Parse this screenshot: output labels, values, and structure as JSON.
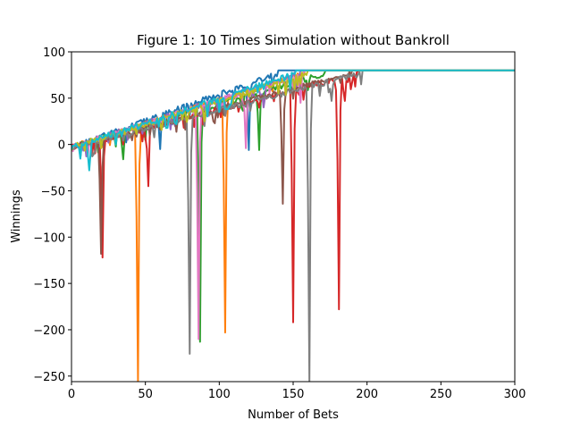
{
  "chart_data": {
    "type": "line",
    "title": "Figure 1: 10 Times Simulation without Bankroll",
    "xlabel": "Number of Bets",
    "ylabel": "Winnings",
    "xlim": [
      0,
      300
    ],
    "ylim": [
      -256,
      100
    ],
    "xticks": [
      0,
      50,
      100,
      150,
      200,
      250,
      300
    ],
    "yticks": [
      100,
      50,
      0,
      -50,
      -100,
      -150,
      -200,
      -250
    ],
    "xtick_labels": [
      "0",
      "50",
      "100",
      "150",
      "200",
      "250",
      "300"
    ],
    "ytick_labels": [
      "100",
      "50",
      "0",
      "−50",
      "−100",
      "−150",
      "−200",
      "−250"
    ],
    "grid": false,
    "legend": "none",
    "series": [
      {
        "color": "#1f77b4",
        "reach_at": 140,
        "dips": [
          [
            14,
            -8
          ],
          [
            60,
            -5
          ],
          [
            120,
            -6
          ]
        ]
      },
      {
        "color": "#ff7f0e",
        "reach_at": 158,
        "dips": [
          [
            45,
            -256
          ],
          [
            104,
            -203
          ],
          [
            150,
            60
          ]
        ]
      },
      {
        "color": "#2ca02c",
        "reach_at": 172,
        "dips": [
          [
            35,
            -16
          ],
          [
            87,
            -213
          ],
          [
            127,
            -6
          ]
        ]
      },
      {
        "color": "#d62728",
        "reach_at": 195,
        "dips": [
          [
            21,
            -122
          ],
          [
            52,
            -45
          ],
          [
            150,
            -192
          ],
          [
            181,
            -178
          ],
          [
            185,
            47
          ]
        ]
      },
      {
        "color": "#9467bd",
        "reach_at": 155,
        "dips": [
          [
            25,
            2
          ],
          [
            70,
            20
          ],
          [
            130,
            40
          ]
        ]
      },
      {
        "color": "#8c564b",
        "reach_at": 190,
        "dips": [
          [
            20,
            -118
          ],
          [
            96,
            25
          ],
          [
            143,
            -64
          ],
          [
            168,
            55
          ]
        ]
      },
      {
        "color": "#e377c2",
        "reach_at": 158,
        "dips": [
          [
            86,
            -210
          ],
          [
            118,
            -4
          ],
          [
            155,
            45
          ]
        ]
      },
      {
        "color": "#7f7f7f",
        "reach_at": 197,
        "dips": [
          [
            80,
            -226
          ],
          [
            161,
            -256
          ],
          [
            176,
            47
          ]
        ]
      },
      {
        "color": "#bcbd22",
        "reach_at": 160,
        "dips": [
          [
            30,
            5
          ],
          [
            90,
            25
          ],
          [
            140,
            55
          ]
        ]
      },
      {
        "color": "#17becf",
        "reach_at": 152,
        "dips": [
          [
            12,
            -28
          ],
          [
            65,
            18
          ],
          [
            100,
            35
          ]
        ]
      }
    ],
    "final_value": 80
  }
}
